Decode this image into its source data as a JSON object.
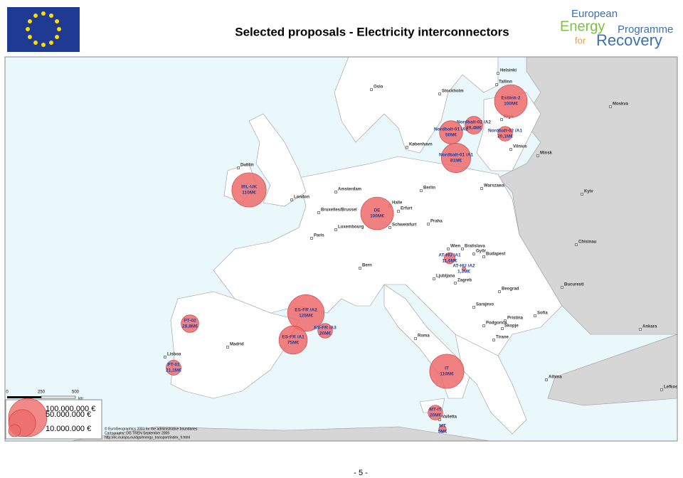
{
  "header": {
    "title": "Selected proposals - Electricity interconnectors",
    "logo": [
      "European",
      "Energy",
      "Programme",
      "for",
      "Recovery"
    ]
  },
  "map": {
    "projects": [
      {
        "name": "Estlink-2",
        "amount": "100M€",
        "value": 100
      },
      {
        "name": "Nordbalt-02 /A2",
        "amount": "29,4M€",
        "value": 29.4
      },
      {
        "name": "Nordbalt-01 /A2",
        "amount": "50M€",
        "value": 50
      },
      {
        "name": "Nordbalt-02 /A1",
        "amount": "20,1M€",
        "value": 20.1
      },
      {
        "name": "Nordbalt-01 /A1",
        "amount": "81M€",
        "value": 81
      },
      {
        "name": "IRL-UK",
        "amount": "110M€",
        "value": 110
      },
      {
        "name": "DE",
        "amount": "100M€",
        "value": 100
      },
      {
        "name": "AT-HU /A1",
        "amount": "11,6M€",
        "value": 11.6
      },
      {
        "name": "AT-HU /A2",
        "amount": "1,3M€",
        "value": 1.3
      },
      {
        "name": "ES-FR /A2",
        "amount": "125M€",
        "value": 125
      },
      {
        "name": "ES-FR /A3",
        "amount": "20M€",
        "value": 20
      },
      {
        "name": "ES-FR /A1",
        "amount": "75M€",
        "value": 75
      },
      {
        "name": "PT-02",
        "amount": "28,8M€",
        "value": 28.8
      },
      {
        "name": "PT-01",
        "amount": "21,1M€",
        "value": 21.1
      },
      {
        "name": "IT",
        "amount": "110M€",
        "value": 110
      },
      {
        "name": "MT-IT",
        "amount": "20M€",
        "value": 20
      },
      {
        "name": "MT",
        "amount": "5M€",
        "value": 5
      }
    ],
    "cities": [
      "Helsinki",
      "Tallinn",
      "Oslo",
      "Stockholm",
      "Moskva",
      "Riga",
      "København",
      "Vilnius",
      "Minsk",
      "Dublin",
      "Berlin",
      "Warszawa",
      "Kyiv",
      "London",
      "Amsterdam",
      "Halle",
      "Bruxelles/Brussel",
      "Erfurt",
      "Luxembourg",
      "Schweinfurt",
      "Praha",
      "Paris",
      "Wien",
      "Bratislava",
      "Budapest",
      "Győr",
      "Chisinau",
      "Bern",
      "Ljubljana",
      "Zagreb",
      "Beograd",
      "Bucuresti",
      "Sarajevo",
      "Sofia",
      "Pristina",
      "Podgorica",
      "Skopje",
      "Tirane",
      "Roma",
      "Madrid",
      "Lisboa",
      "Ankara",
      "Athina",
      "Valletta",
      "Lefkosia"
    ],
    "scale_bar": [
      "0",
      "250",
      "500",
      "km"
    ],
    "legend": [
      {
        "value": 100000000,
        "label": "100.000.000 €"
      },
      {
        "value": 50000000,
        "label": "50.000.000 €"
      },
      {
        "value": 10000000,
        "label": "10.000.000 €"
      }
    ],
    "credits": [
      "© EuroGeographics 2001 for the administrative boundaries",
      "Cartography: DG TREN September 2009",
      "http://ec.europa.eu/dgs/energy_transport/index_fr.html"
    ]
  },
  "footer": {
    "page": "- 5 -"
  }
}
